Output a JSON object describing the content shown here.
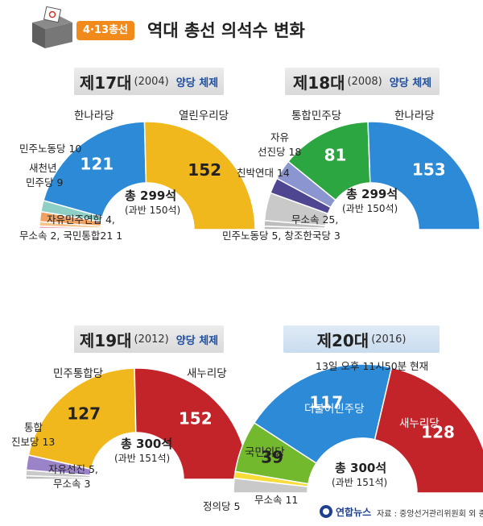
{
  "header": {
    "badge": "4·13총선",
    "title": "역대 총선 의석수 변화"
  },
  "colors": {
    "gold": "#f0b81c",
    "blue": "#2c8ad6",
    "red": "#c2242a",
    "green": "#2ba640",
    "lime": "#72b92e",
    "purple": "#9b83c9",
    "darkpurple": "#4f4692",
    "periwinkle": "#8b95cf",
    "grey": "#c9c9c9",
    "orange": "#f2a96a",
    "teal": "#8fc7c2",
    "lightblue": "#a9d4ee",
    "pink": "#e9a3b8",
    "yellow": "#f7dc3a",
    "ltgrey": "#bdbdbd"
  },
  "charts": [
    {
      "title": "제17대",
      "year": "(2004)",
      "system": "양당 체제",
      "total": "총 299석",
      "majority": "(과반 150석)",
      "labels": {
        "left_top": "한나라당",
        "right_top": "열린우리당",
        "left1": "민주노동당 10",
        "left2a": "새천년",
        "left2b": "민주당 9",
        "bottom1": "자유민주연합 4,",
        "bottom2": "무소속 2, 국민통합21 1"
      }
    },
    {
      "title": "제18대",
      "year": "(2008)",
      "system": "양당 체제",
      "total": "총 299석",
      "majority": "(과반 150석)",
      "labels": {
        "top1": "통합민주당",
        "top2": "한나라당",
        "left1a": "자유",
        "left1b": "선진당 18",
        "left2": "친박연대 14",
        "bottom1": "무소속 25,",
        "bottom2": "민주노동당 5, 창조한국당 3"
      }
    },
    {
      "title": "제19대",
      "year": "(2012)",
      "system": "양당 체제",
      "total": "총 300석",
      "majority": "(과반 151석)",
      "labels": {
        "left_top": "민주통합당",
        "right_top": "새누리당",
        "left1a": "통합",
        "left1b": "진보당 13",
        "bottom1": "자유선진 5,",
        "bottom2": "무소속 3"
      }
    },
    {
      "title": "제20대",
      "year": "(2016)",
      "system": "",
      "total": "총 300석",
      "majority": "(과반 151석)",
      "status": "13일 오후 11시50분 현재",
      "labels": {
        "p1": "더불어민주당",
        "p2": "새누리당",
        "p3": "국민의당",
        "left1": "정의당 5",
        "bottom1": "무소속 11"
      }
    }
  ],
  "chart_data": [
    {
      "type": "pie",
      "title": "제17대 (2004)",
      "segments": [
        {
          "name": "국민통합21",
          "value": 1
        },
        {
          "name": "무소속",
          "value": 2
        },
        {
          "name": "자유민주연합",
          "value": 4
        },
        {
          "name": "새천년민주당",
          "value": 9
        },
        {
          "name": "민주노동당",
          "value": 10
        },
        {
          "name": "한나라당",
          "value": 121
        },
        {
          "name": "열린우리당",
          "value": 152
        }
      ]
    },
    {
      "type": "pie",
      "title": "제18대 (2008)",
      "segments": [
        {
          "name": "창조한국당",
          "value": 3
        },
        {
          "name": "민주노동당",
          "value": 5
        },
        {
          "name": "무소속",
          "value": 25
        },
        {
          "name": "친박연대",
          "value": 14
        },
        {
          "name": "자유선진당",
          "value": 18
        },
        {
          "name": "통합민주당",
          "value": 81
        },
        {
          "name": "한나라당",
          "value": 153
        }
      ]
    },
    {
      "type": "pie",
      "title": "제19대 (2012)",
      "segments": [
        {
          "name": "무소속",
          "value": 3
        },
        {
          "name": "자유선진",
          "value": 5
        },
        {
          "name": "통합진보당",
          "value": 13
        },
        {
          "name": "민주통합당",
          "value": 127
        },
        {
          "name": "새누리당",
          "value": 152
        }
      ]
    },
    {
      "type": "pie",
      "title": "제20대 (2016)",
      "segments": [
        {
          "name": "무소속",
          "value": 11
        },
        {
          "name": "정의당",
          "value": 5
        },
        {
          "name": "국민의당",
          "value": 39
        },
        {
          "name": "더불어민주당",
          "value": 117
        },
        {
          "name": "새누리당",
          "value": 128
        }
      ]
    }
  ],
  "footer": {
    "logo": "연합뉴스",
    "source": "자료 : 중앙선거관리위원회 외 종합"
  }
}
